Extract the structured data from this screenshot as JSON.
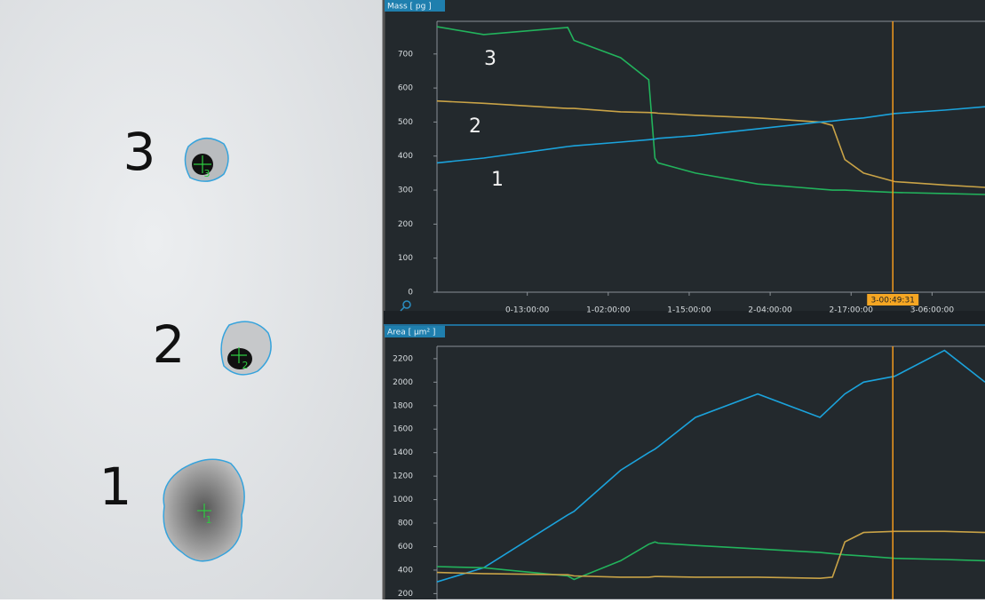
{
  "image": {
    "labels": [
      "3",
      "2",
      "1"
    ],
    "markers": [
      "3",
      "2",
      "1"
    ]
  },
  "chart_data": [
    {
      "type": "line",
      "ylabel": "Mass [ pg ]",
      "x": [
        -1.5,
        6,
        19.5,
        20.5,
        28,
        32.5,
        33.5,
        34,
        40,
        50,
        60,
        62,
        64,
        67,
        72,
        80,
        86.5
      ],
      "xlim": [
        -1.5,
        86.5
      ],
      "xticks": [
        {
          "value": 13,
          "label": "0-13:00:00"
        },
        {
          "value": 26,
          "label": "1-02:00:00"
        },
        {
          "value": 39,
          "label": "1-15:00:00"
        },
        {
          "value": 52,
          "label": "2-04:00:00"
        },
        {
          "value": 65,
          "label": "2-17:00:00"
        },
        {
          "value": 78,
          "label": "3-06:00:00"
        }
      ],
      "ylim": [
        0,
        796
      ],
      "yticks": [
        0,
        100,
        200,
        300,
        400,
        500,
        600,
        700
      ],
      "cursor": {
        "value": 71.7,
        "label": "3-00:49:31"
      },
      "series": [
        {
          "name": "3",
          "color": "#22b35c",
          "values": [
            780,
            757,
            778,
            740,
            689,
            624,
            394,
            380,
            350,
            318,
            303,
            300,
            300,
            297,
            293,
            290,
            287
          ]
        },
        {
          "name": "2",
          "color": "#c9a347",
          "values": [
            562,
            555,
            540,
            540,
            530,
            528,
            527,
            526,
            520,
            512,
            500,
            490,
            390,
            350,
            325,
            315,
            308
          ]
        },
        {
          "name": "1",
          "color": "#1ba3dc",
          "values": [
            380,
            394,
            428,
            430,
            441,
            448,
            450,
            452,
            460,
            480,
            500,
            503,
            507,
            512,
            525,
            535,
            545
          ]
        }
      ]
    },
    {
      "type": "line",
      "ylabel": "Area [ µm² ]",
      "x": [
        -1.5,
        6,
        19.5,
        20.5,
        28,
        32.5,
        33.5,
        34,
        40,
        50,
        60,
        62,
        64,
        67,
        72,
        80,
        86.5
      ],
      "xlim": [
        -1.5,
        86.5
      ],
      "ylim": [
        150,
        2305
      ],
      "yticks": [
        200,
        400,
        600,
        800,
        1000,
        1200,
        1400,
        1600,
        1800,
        2000,
        2200
      ],
      "cursor": {
        "value": 71.7
      },
      "series": [
        {
          "color": "#1ba3dc",
          "values": [
            300,
            420,
            870,
            900,
            1250,
            1400,
            1430,
            1450,
            1700,
            1900,
            1700,
            1800,
            1900,
            2000,
            2050,
            2270,
            2000
          ]
        },
        {
          "color": "#22b35c",
          "values": [
            430,
            420,
            350,
            320,
            480,
            620,
            640,
            630,
            610,
            580,
            550,
            540,
            530,
            520,
            500,
            490,
            480
          ]
        },
        {
          "color": "#c9a347",
          "values": [
            380,
            370,
            360,
            350,
            340,
            340,
            345,
            345,
            340,
            340,
            330,
            340,
            640,
            720,
            730,
            730,
            720
          ]
        }
      ]
    }
  ]
}
